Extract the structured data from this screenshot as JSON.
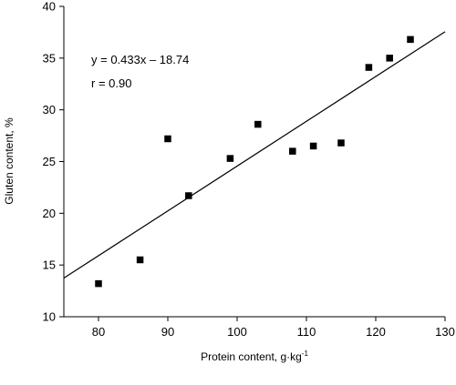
{
  "chart_data": {
    "type": "scatter",
    "xlabel": "Protein content, g·kg",
    "xlabel_superscript": "-1",
    "ylabel": "Gluten  content, %",
    "xlim": [
      75,
      130
    ],
    "ylim": [
      10,
      40
    ],
    "xticks": [
      80,
      90,
      100,
      110,
      120,
      130
    ],
    "yticks": [
      10,
      15,
      20,
      25,
      30,
      35,
      40
    ],
    "grid": false,
    "points": [
      {
        "x": 80,
        "y": 13.2
      },
      {
        "x": 86,
        "y": 15.5
      },
      {
        "x": 90,
        "y": 27.2
      },
      {
        "x": 93,
        "y": 21.7
      },
      {
        "x": 99,
        "y": 25.3
      },
      {
        "x": 103,
        "y": 28.6
      },
      {
        "x": 108,
        "y": 26.0
      },
      {
        "x": 111,
        "y": 26.5
      },
      {
        "x": 115,
        "y": 26.8
      },
      {
        "x": 119,
        "y": 34.1
      },
      {
        "x": 122,
        "y": 35.0
      },
      {
        "x": 125,
        "y": 36.8
      }
    ],
    "regression": {
      "slope": 0.433,
      "intercept": -18.74,
      "x_range": [
        75,
        130
      ]
    },
    "annotations": [
      "y = 0.433x – 18.74",
      "r = 0.90"
    ]
  }
}
